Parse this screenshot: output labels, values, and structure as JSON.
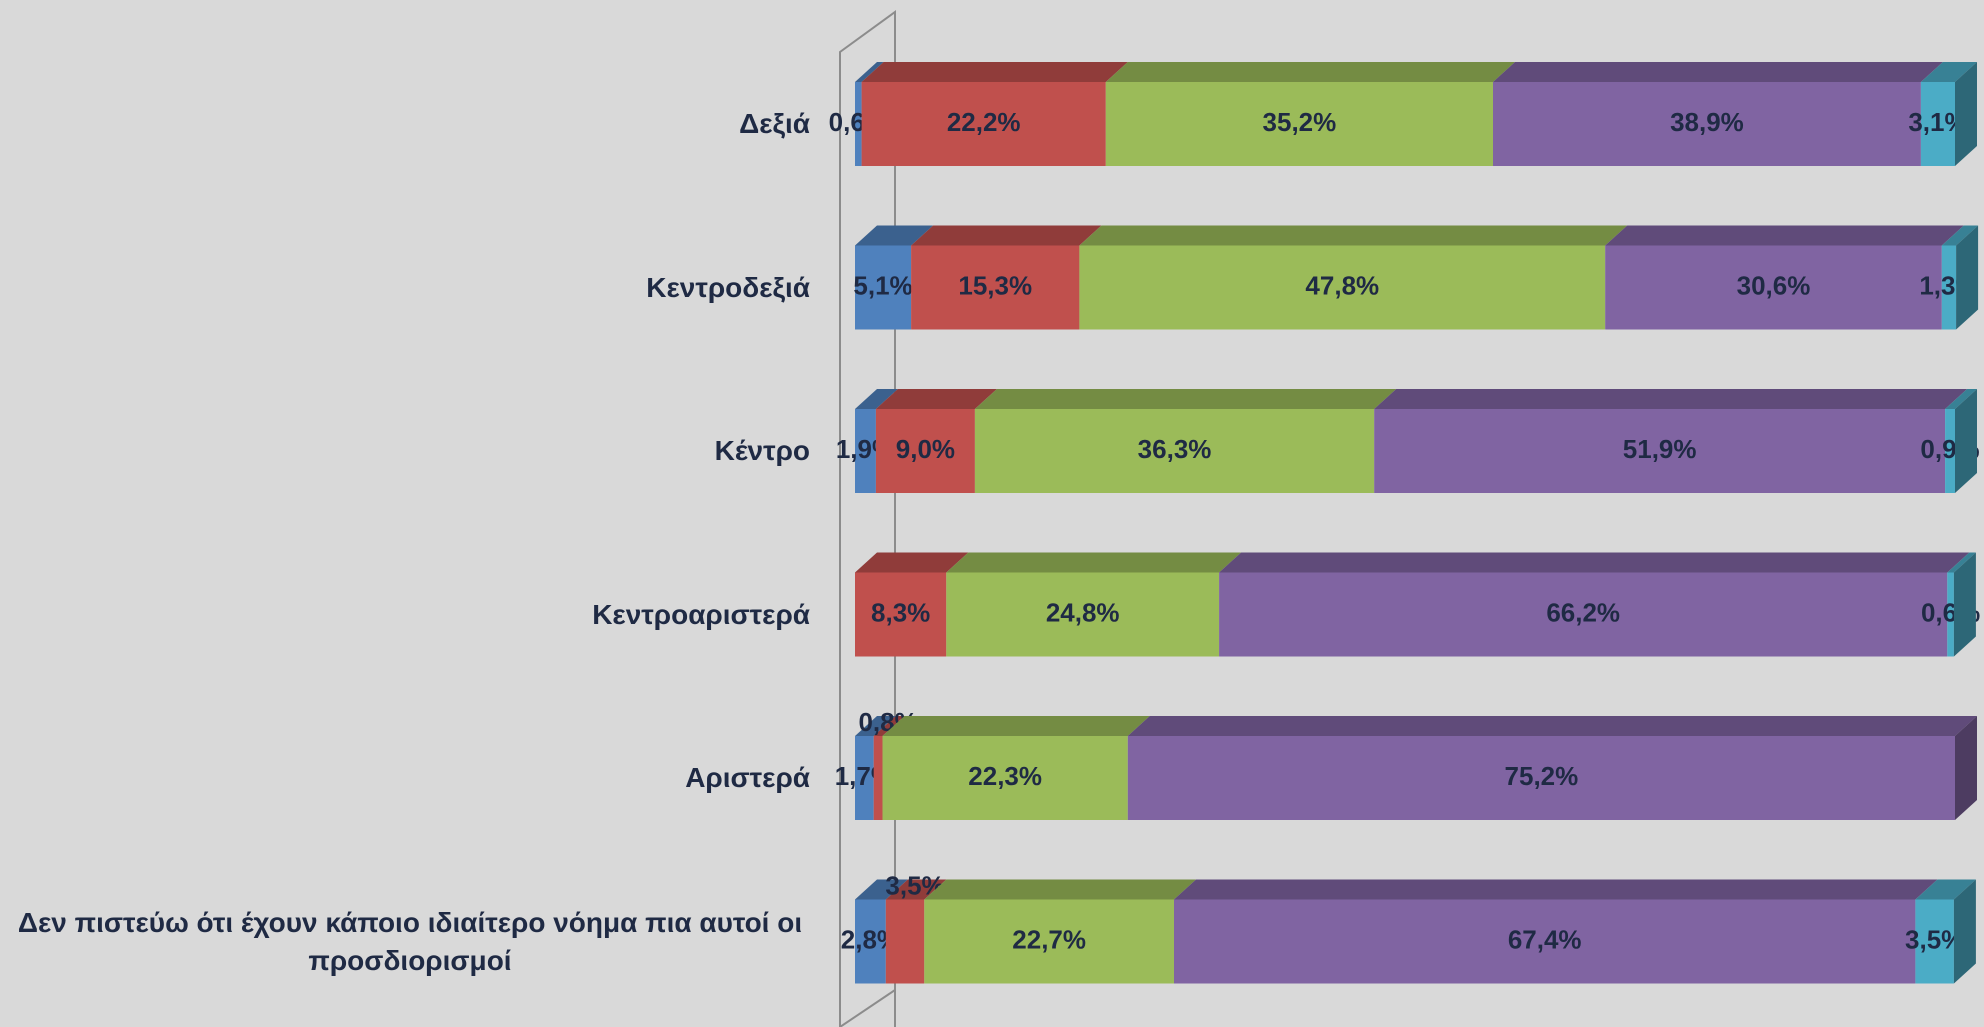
{
  "chart_data": {
    "type": "stacked-bar-horizontal",
    "categories": [
      "Δεξιά",
      "Κεντροδεξιά",
      "Κέντρο",
      "Κεντροαριστερά",
      "Αριστερά",
      "Δεν πιστεύω ότι έχουν κάποιο ιδιαίτερο νόημα πια αυτοί οι προσδιορισμοί"
    ],
    "xlim": [
      0,
      100
    ],
    "series": [
      {
        "color": "#4f81bd",
        "values": [
          0.6,
          5.1,
          1.9,
          null,
          1.7,
          2.8
        ],
        "value_labels": [
          "0,6%",
          "5,1%",
          "1,9%",
          null,
          "1,7%",
          "2,8%"
        ]
      },
      {
        "color": "#c0504d",
        "values": [
          22.2,
          15.3,
          9.0,
          8.3,
          0.8,
          3.5
        ],
        "value_labels": [
          "22,2%",
          "15,3%",
          "9,0%",
          "8,3%",
          "0,8%",
          "3,5%"
        ]
      },
      {
        "color": "#9bbb59",
        "values": [
          35.2,
          47.8,
          36.3,
          24.8,
          22.3,
          22.7
        ],
        "value_labels": [
          "35,2%",
          "47,8%",
          "36,3%",
          "24,8%",
          "22,3%",
          "22,7%"
        ]
      },
      {
        "color": "#8064a2",
        "values": [
          38.9,
          30.6,
          51.9,
          66.2,
          75.2,
          67.4
        ],
        "value_labels": [
          "38,9%",
          "30,6%",
          "51,9%",
          "66,2%",
          "75,2%",
          "67,4%"
        ]
      },
      {
        "color": "#4bacc6",
        "values": [
          3.1,
          1.3,
          0.9,
          0.6,
          null,
          3.5
        ],
        "value_labels": [
          "3,1%",
          "1,3%",
          "0,9%",
          "0,6%",
          null,
          "3,5%"
        ]
      }
    ]
  }
}
